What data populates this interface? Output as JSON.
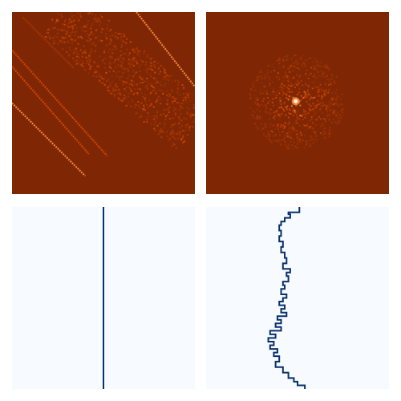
{
  "colors": {
    "heat_background": "#7f2704",
    "heat_low": "#a63603",
    "heat_mid": "#d94801",
    "heat_high": "#fd8d3c",
    "heat_peak": "#fff5eb",
    "profile_background": "#f7fbff",
    "profile_line": "#08306b"
  },
  "chart_data": [
    {
      "type": "heatmap",
      "panel": "top-left",
      "description_kind": "diagonal streaks with a broad diffuse diagonal band",
      "grid": false,
      "legend": "none",
      "xlim": [
        0,
        1
      ],
      "ylim": [
        0,
        1
      ],
      "streaks": [
        {
          "x0": 0.68,
          "y0": 0.0,
          "x1": 1.0,
          "y1": 0.41,
          "intensity": 0.85
        },
        {
          "x0": 0.0,
          "y0": 0.21,
          "x1": 0.52,
          "y1": 0.79,
          "intensity": 0.55
        },
        {
          "x0": 0.0,
          "y0": 0.3,
          "x1": 0.42,
          "y1": 0.78,
          "intensity": 0.5
        },
        {
          "x0": 0.0,
          "y0": 0.5,
          "x1": 0.4,
          "y1": 0.9,
          "intensity": 0.85
        },
        {
          "x0": 0.06,
          "y0": 0.03,
          "x1": 0.34,
          "y1": 0.31,
          "intensity": 0.35
        }
      ],
      "diffuse_band": {
        "x0": 0.25,
        "y0": 0.0,
        "x1": 1.0,
        "y1": 0.65,
        "width": 0.3,
        "intensity": 0.45
      }
    },
    {
      "type": "heatmap",
      "panel": "top-right",
      "description_kind": "radial speckle cloud with bright center",
      "grid": false,
      "legend": "none",
      "xlim": [
        0,
        1
      ],
      "ylim": [
        0,
        1
      ],
      "center": {
        "x": 0.49,
        "y": 0.49
      },
      "radius": 0.26,
      "peak_intensity": 1.0
    },
    {
      "type": "line",
      "panel": "bottom-left",
      "grid": false,
      "legend": "none",
      "xlim": [
        0,
        1
      ],
      "ylim": [
        0,
        1
      ],
      "series": [
        {
          "x": [
            0.5,
            0.5
          ],
          "y": [
            0.0,
            1.0
          ]
        }
      ]
    },
    {
      "type": "line",
      "panel": "bottom-right",
      "grid": false,
      "legend": "none",
      "xlim": [
        0,
        1
      ],
      "ylim": [
        0,
        1
      ],
      "series": [
        {
          "x": [
            0.51,
            0.51,
            0.45,
            0.46,
            0.43,
            0.41,
            0.4,
            0.41,
            0.4,
            0.42,
            0.41,
            0.43,
            0.44,
            0.42,
            0.46,
            0.44,
            0.45,
            0.42,
            0.43,
            0.41,
            0.44,
            0.42,
            0.4,
            0.43,
            0.41,
            0.44,
            0.39,
            0.41,
            0.38,
            0.41,
            0.35,
            0.38,
            0.34,
            0.37,
            0.35,
            0.39,
            0.37,
            0.4,
            0.38,
            0.42,
            0.45,
            0.48,
            0.5,
            0.54
          ],
          "y": [
            0.0,
            0.03,
            0.04,
            0.06,
            0.08,
            0.1,
            0.13,
            0.16,
            0.19,
            0.22,
            0.25,
            0.28,
            0.31,
            0.34,
            0.36,
            0.38,
            0.41,
            0.43,
            0.45,
            0.48,
            0.5,
            0.52,
            0.54,
            0.56,
            0.58,
            0.6,
            0.62,
            0.64,
            0.66,
            0.68,
            0.7,
            0.72,
            0.74,
            0.76,
            0.78,
            0.8,
            0.82,
            0.85,
            0.88,
            0.91,
            0.94,
            0.96,
            0.98,
            1.0
          ]
        }
      ]
    }
  ]
}
